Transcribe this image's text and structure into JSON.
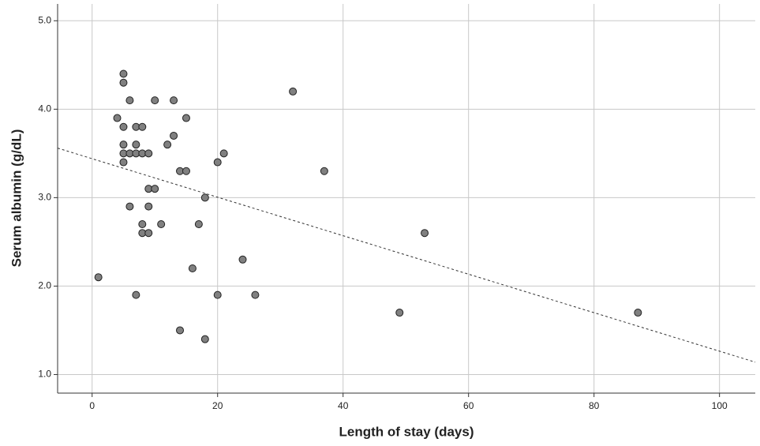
{
  "chart_data": {
    "type": "scatter",
    "x_label": "Length of stay (days)",
    "y_label": "Serum albumin (g/dL)",
    "x": [
      1,
      4,
      5,
      5,
      5,
      5,
      5,
      5,
      6,
      6,
      6,
      7,
      7,
      7,
      7,
      8,
      8,
      8,
      8,
      9,
      9,
      9,
      9,
      10,
      10,
      11,
      12,
      13,
      13,
      14,
      14,
      15,
      15,
      16,
      17,
      18,
      18,
      20,
      20,
      21,
      24,
      26,
      32,
      37,
      49,
      53,
      87
    ],
    "y": [
      2.1,
      3.9,
      4.4,
      4.3,
      3.8,
      3.6,
      3.5,
      3.4,
      4.1,
      3.5,
      2.9,
      3.8,
      3.6,
      3.5,
      1.9,
      3.8,
      3.5,
      2.7,
      2.6,
      3.5,
      3.1,
      2.9,
      2.6,
      4.1,
      3.1,
      2.7,
      3.6,
      4.1,
      3.7,
      3.3,
      1.5,
      3.9,
      3.3,
      2.2,
      2.7,
      3.0,
      1.4,
      3.4,
      1.9,
      3.5,
      2.3,
      1.9,
      4.2,
      3.3,
      1.7,
      2.6,
      1.7
    ],
    "color": "#808080",
    "trend": {
      "x": [
        -5.5,
        105.7
      ],
      "y": [
        3.56,
        1.14
      ]
    },
    "xlim": [
      -5.5,
      105.7
    ],
    "ylim": [
      0.79,
      5.19
    ],
    "xticks": [
      0,
      20,
      40,
      60,
      80,
      100
    ],
    "yticks": [
      {
        "value": 1,
        "label": "1.0"
      },
      {
        "value": 2,
        "label": "2.0"
      },
      {
        "value": 3,
        "label": "3.0"
      },
      {
        "value": 4,
        "label": "4.0"
      },
      {
        "value": 5,
        "label": "5.0"
      }
    ],
    "grid": true
  }
}
